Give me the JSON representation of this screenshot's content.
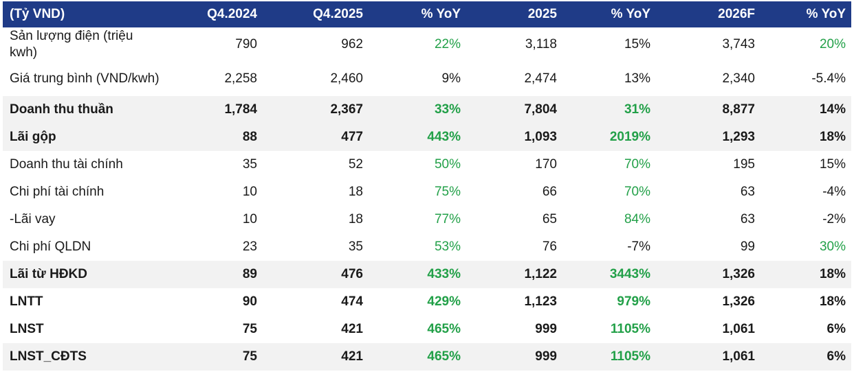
{
  "table": {
    "headers": [
      "(Tỷ VND)",
      "Q4.2024",
      "Q4.2025",
      "% YoY",
      "2025",
      "% YoY",
      "2026F",
      "% YoY"
    ],
    "rows": [
      {
        "label": "Sản lượng điện (triệu kwh)",
        "values": [
          "790",
          "962",
          "22%",
          "3,118",
          "15%",
          "3,743",
          "20%"
        ],
        "colors": [
          "plain",
          "plain",
          "pos",
          "plain",
          "plain",
          "plain",
          "pos"
        ],
        "bold": false,
        "shaded": false,
        "tall": true
      },
      {
        "label": "Giá trung bình (VND/kwh)",
        "values": [
          "2,258",
          "2,460",
          "9%",
          "2,474",
          "13%",
          "2,340",
          "-5.4%"
        ],
        "colors": [
          "plain",
          "plain",
          "plain",
          "plain",
          "plain",
          "plain",
          "plain"
        ],
        "bold": false,
        "shaded": false,
        "tall": true
      },
      {
        "label": "Doanh thu thuần",
        "values": [
          "1,784",
          "2,367",
          "33%",
          "7,804",
          "31%",
          "8,877",
          "14%"
        ],
        "colors": [
          "plain",
          "plain",
          "pos",
          "plain",
          "pos",
          "plain",
          "plain"
        ],
        "bold": true,
        "shaded": true,
        "tall": false
      },
      {
        "label": "Lãi gộp",
        "values": [
          "88",
          "477",
          "443%",
          "1,093",
          "2019%",
          "1,293",
          "18%"
        ],
        "colors": [
          "plain",
          "plain",
          "pos",
          "plain",
          "pos",
          "plain",
          "plain"
        ],
        "bold": true,
        "shaded": true,
        "tall": false
      },
      {
        "label": "Doanh thu tài chính",
        "values": [
          "35",
          "52",
          "50%",
          "170",
          "70%",
          "195",
          "15%"
        ],
        "colors": [
          "plain",
          "plain",
          "pos",
          "plain",
          "pos",
          "plain",
          "plain"
        ],
        "bold": false,
        "shaded": false,
        "tall": false
      },
      {
        "label": "Chi phí tài chính",
        "values": [
          "10",
          "18",
          "75%",
          "66",
          "70%",
          "63",
          "-4%"
        ],
        "colors": [
          "plain",
          "plain",
          "pos",
          "plain",
          "pos",
          "plain",
          "plain"
        ],
        "bold": false,
        "shaded": false,
        "tall": false
      },
      {
        "label": "-Lãi vay",
        "values": [
          "10",
          "18",
          "77%",
          "65",
          "84%",
          "63",
          "-2%"
        ],
        "colors": [
          "plain",
          "plain",
          "pos",
          "plain",
          "pos",
          "plain",
          "plain"
        ],
        "bold": false,
        "shaded": false,
        "tall": false
      },
      {
        "label": "Chi phí QLDN",
        "values": [
          "23",
          "35",
          "53%",
          "76",
          "-7%",
          "99",
          "30%"
        ],
        "colors": [
          "plain",
          "plain",
          "pos",
          "plain",
          "plain",
          "plain",
          "pos"
        ],
        "bold": false,
        "shaded": false,
        "tall": false
      },
      {
        "label": "Lãi từ HĐKD",
        "values": [
          "89",
          "476",
          "433%",
          "1,122",
          "3443%",
          "1,326",
          "18%"
        ],
        "colors": [
          "plain",
          "plain",
          "pos",
          "plain",
          "pos",
          "plain",
          "plain"
        ],
        "bold": true,
        "shaded": true,
        "tall": false
      },
      {
        "label": "LNTT",
        "values": [
          "90",
          "474",
          "429%",
          "1,123",
          "979%",
          "1,326",
          "18%"
        ],
        "colors": [
          "plain",
          "plain",
          "pos",
          "plain",
          "pos",
          "plain",
          "plain"
        ],
        "bold": true,
        "shaded": false,
        "tall": false
      },
      {
        "label": "LNST",
        "values": [
          "75",
          "421",
          "465%",
          "999",
          "1105%",
          "1,061",
          "6%"
        ],
        "colors": [
          "plain",
          "plain",
          "pos",
          "plain",
          "pos",
          "plain",
          "plain"
        ],
        "bold": true,
        "shaded": false,
        "tall": false
      },
      {
        "label": "LNST_CĐTS",
        "values": [
          "75",
          "421",
          "465%",
          "999",
          "1105%",
          "1,061",
          "6%"
        ],
        "colors": [
          "plain",
          "plain",
          "pos",
          "plain",
          "pos",
          "plain",
          "plain"
        ],
        "bold": true,
        "shaded": true,
        "tall": false
      }
    ]
  },
  "colors": {
    "header_bg": "#1f3b87",
    "header_text": "#ffffff",
    "positive_green": "#22a048",
    "shaded_row_bg": "#f2f2f2"
  }
}
